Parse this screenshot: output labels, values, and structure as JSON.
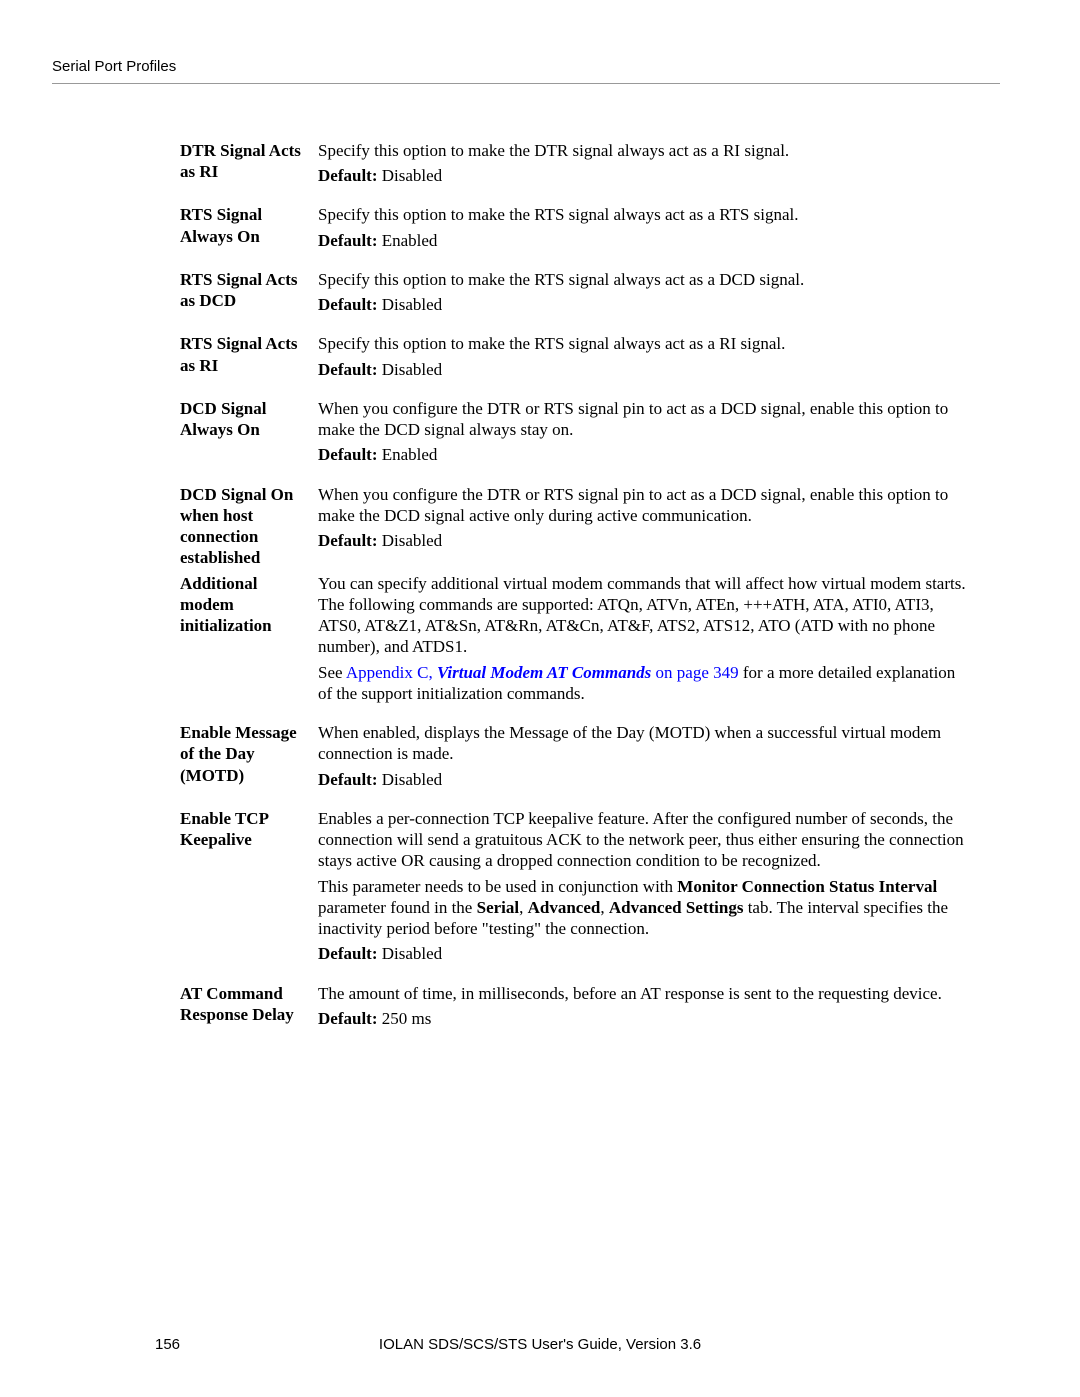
{
  "header": {
    "title": "Serial Port Profiles"
  },
  "rows": [
    {
      "term": "DTR Signal Acts as RI",
      "paras": [
        {
          "text": "Specify this option to make the DTR signal always act as a RI signal."
        }
      ],
      "default": "Disabled"
    },
    {
      "term": "RTS Signal Always On",
      "paras": [
        {
          "text": "Specify this option to make the RTS signal always act as a RTS signal."
        }
      ],
      "default": "Enabled"
    },
    {
      "term": "RTS Signal Acts as DCD",
      "paras": [
        {
          "text": "Specify this option to make the RTS signal always act as a DCD signal."
        }
      ],
      "default": "Disabled"
    },
    {
      "term": "RTS Signal Acts as RI",
      "paras": [
        {
          "text": "Specify this option to make the RTS signal always act as a RI signal."
        }
      ],
      "default": "Disabled"
    },
    {
      "term": "DCD Signal Always On",
      "paras": [
        {
          "text": "When you configure the DTR or RTS signal pin to act as a DCD signal, enable this option to make the DCD signal always stay on."
        }
      ],
      "default": "Enabled"
    },
    {
      "term": "DCD Signal On when host connection established",
      "tight": true,
      "paras": [
        {
          "text": "When you configure the DTR or RTS signal pin to act as a DCD signal, enable this option to make the DCD signal active only during active communication."
        }
      ],
      "default": "Disabled"
    },
    {
      "term": "Additional modem initialization",
      "paras": [
        {
          "text": "You can specify additional virtual modem commands that will affect how virtual modem starts. The following commands are supported: ATQn, ATVn, ATEn, +++ATH, ATA, ATI0, ATI3, ATS0, AT&Z1, AT&Sn, AT&Rn, AT&Cn, AT&F, ATS2, ATS12, ATO (ATD with no phone number), and ATDS1."
        },
        {
          "runs": [
            {
              "text": "See "
            },
            {
              "text": "Appendix C, ",
              "cls": "link"
            },
            {
              "text": "Virtual Modem AT Commands",
              "cls": "link-italic"
            },
            {
              "text": " on page 349",
              "cls": "link"
            },
            {
              "text": " for a more detailed explanation of the support initialization commands."
            }
          ]
        }
      ]
    },
    {
      "term": "Enable Message of the Day (MOTD)",
      "paras": [
        {
          "text": "When enabled, displays the Message of the Day (MOTD) when a successful virtual modem connection is made."
        }
      ],
      "default": "Disabled"
    },
    {
      "term": "Enable TCP Keepalive",
      "paras": [
        {
          "text": "Enables a per-connection TCP keepalive feature. After the configured number of seconds, the connection will send a gratuitous ACK to the network peer, thus either ensuring the connection stays active OR causing a dropped connection condition to be recognized."
        },
        {
          "runs": [
            {
              "text": "This parameter needs to be used in conjunction with "
            },
            {
              "text": "Monitor Connection Status Interval",
              "cls": "bold-inline"
            },
            {
              "text": " parameter found in the "
            },
            {
              "text": "Serial",
              "cls": "bold-inline"
            },
            {
              "text": ", "
            },
            {
              "text": "Advanced",
              "cls": "bold-inline"
            },
            {
              "text": ", "
            },
            {
              "text": "Advanced Settings",
              "cls": "bold-inline"
            },
            {
              "text": " tab. The interval specifies the inactivity period before \"testing\" the connection."
            }
          ]
        }
      ],
      "default": "Disabled"
    },
    {
      "term": "AT Command Response Delay",
      "paras": [
        {
          "text": "The amount of time, in milliseconds, before an AT response is sent to the requesting device."
        }
      ],
      "default": "250 ms"
    }
  ],
  "footer": {
    "page": "156",
    "center": "IOLAN SDS/SCS/STS User's Guide, Version 3.6"
  },
  "labels": {
    "default": "Default:"
  }
}
